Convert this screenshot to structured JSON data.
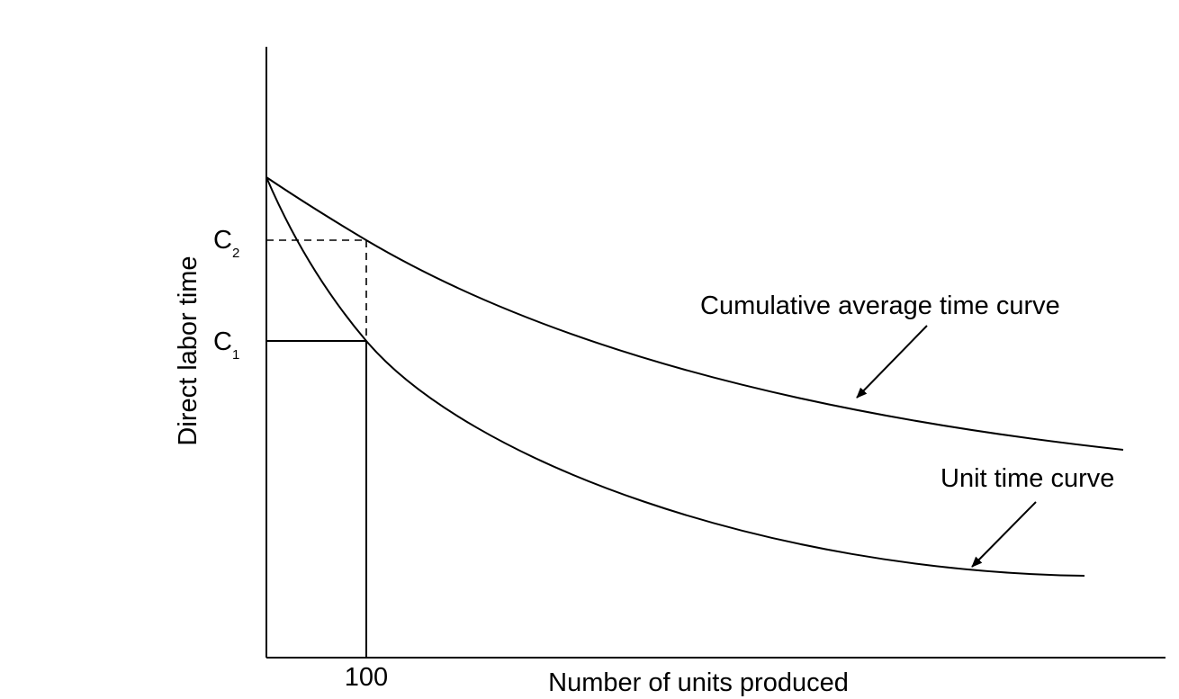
{
  "diagram": {
    "y_axis_label": "Direct labor time",
    "x_axis_label": "Number of units produced",
    "x_tick": "100",
    "y_marks": [
      {
        "letter": "C",
        "subscript": "2"
      },
      {
        "letter": "C",
        "subscript": "1"
      }
    ],
    "curves": [
      {
        "label": "Cumulative average time curve"
      },
      {
        "label": "Unit time curve"
      }
    ],
    "colors": {
      "line": "#000000",
      "background": "#ffffff"
    }
  }
}
